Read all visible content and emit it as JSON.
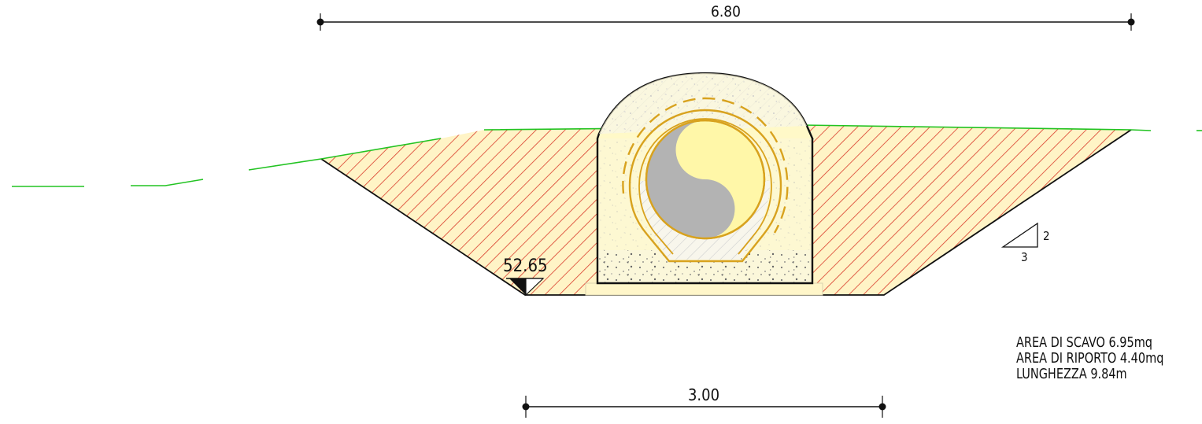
{
  "dimensions": {
    "top_width": "6.80",
    "bottom_width": "3.00"
  },
  "elevation": "52.65",
  "slope": {
    "rise": "2",
    "run": "3"
  },
  "notes": [
    "AREA DI SCAVO 6.95mq",
    "AREA DI RIPORTO 4.40mq",
    "LUNGHEZZA 9.84m"
  ],
  "colors": {
    "ground_line": "#22c322",
    "excavation_hatch": "#d93b2a",
    "excavation_fill": "#fff4c6",
    "backfill": "#fff9c8",
    "pipe_gold": "#d8a21e",
    "pipe_inner": "#b3b3b3",
    "pipe_core": "#fff7a8",
    "outline": "#111111"
  }
}
